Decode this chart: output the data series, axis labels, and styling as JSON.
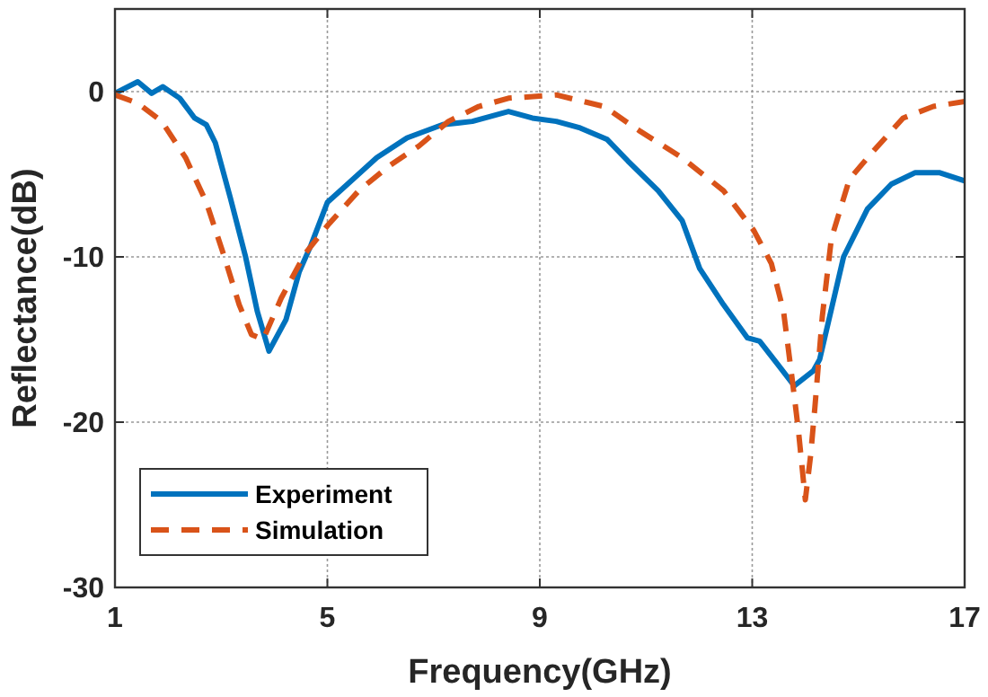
{
  "chart_data": {
    "type": "line",
    "xlabel": "Frequency(GHz)",
    "ylabel": "Reflectance(dB)",
    "xlim": [
      1,
      17
    ],
    "xticks": [
      1,
      5,
      9,
      13,
      17
    ],
    "ylim": [
      -30,
      5
    ],
    "yticks": [
      -30,
      -20,
      -10,
      0
    ],
    "grid": true,
    "legend": "bottom left",
    "series": [
      {
        "name": "Experiment",
        "color": "#0072bd",
        "line_style": "solid",
        "x": [
          1,
          1.43,
          1.69,
          1.9,
          2.22,
          2.5,
          2.72,
          2.89,
          3.17,
          3.46,
          3.68,
          3.9,
          4.22,
          4.47,
          4.69,
          5.0,
          5.31,
          5.93,
          6.5,
          7.17,
          7.73,
          8.07,
          8.41,
          8.86,
          9.31,
          9.76,
          10.27,
          10.66,
          11.23,
          11.68,
          12.01,
          12.46,
          12.91,
          13.14,
          13.48,
          13.79,
          14.15,
          14.27,
          14.72,
          15.17,
          15.62,
          16.07,
          16.52,
          17
        ],
        "values": [
          -0.1,
          0.6,
          -0.1,
          0.3,
          -0.4,
          -1.6,
          -2.0,
          -3.1,
          -6.4,
          -10,
          -13.3,
          -15.7,
          -13.8,
          -10.9,
          -9.3,
          -6.7,
          -5.8,
          -4.0,
          -2.8,
          -2.0,
          -1.8,
          -1.5,
          -1.2,
          -1.6,
          -1.8,
          -2.2,
          -2.9,
          -4.2,
          -6.0,
          -7.8,
          -10.7,
          -12.9,
          -14.9,
          -15.1,
          -16.5,
          -17.8,
          -16.9,
          -16.2,
          -10,
          -7.1,
          -5.6,
          -4.9,
          -4.9,
          -5.4
        ]
      },
      {
        "name": "Simulation",
        "color": "#d95319",
        "line_style": "dashed",
        "x": [
          1,
          1.43,
          1.88,
          2.33,
          2.72,
          3.06,
          3.34,
          3.57,
          3.79,
          4.13,
          4.58,
          5.03,
          5.59,
          6.16,
          6.72,
          7.28,
          7.85,
          8.41,
          9.31,
          10.21,
          10.89,
          11.68,
          12.46,
          13.03,
          13.36,
          13.59,
          13.76,
          13.87,
          14.0,
          14.1,
          14.18,
          14.32,
          14.49,
          14.83,
          15.28,
          15.84,
          16.41,
          17
        ],
        "values": [
          -0.2,
          -0.7,
          -1.8,
          -4.0,
          -6.7,
          -10,
          -12.9,
          -14.7,
          -15.0,
          -12.5,
          -9.8,
          -8.0,
          -6.0,
          -4.5,
          -3.3,
          -1.8,
          -0.9,
          -0.4,
          -0.2,
          -0.9,
          -2.4,
          -4.0,
          -6.0,
          -8.4,
          -10.4,
          -13.3,
          -17.6,
          -20.5,
          -24.7,
          -22.0,
          -19.1,
          -13.6,
          -8.9,
          -5.3,
          -3.6,
          -1.6,
          -0.9,
          -0.6
        ]
      }
    ]
  }
}
